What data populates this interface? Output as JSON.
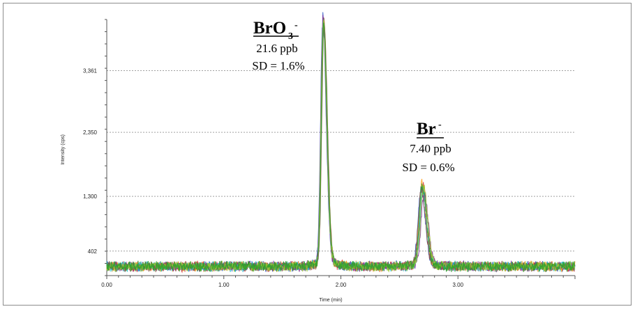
{
  "chart_data": {
    "type": "line",
    "xlabel": "Time (min)",
    "ylabel": "Intensity (cps)",
    "xlim": [
      0.0,
      4.0
    ],
    "ylim": [
      0,
      4200
    ],
    "x_tick_labels": [
      "0.00",
      "1.00",
      "2.00",
      "3.00"
    ],
    "x_ticks": [
      0.0,
      1.0,
      2.0,
      3.0
    ],
    "y_tick_labels": [
      "402",
      "1,300",
      "2,350",
      "3,361"
    ],
    "y_ticks": [
      402,
      1300,
      2350,
      3361
    ],
    "grid": "horizontal dotted",
    "baseline": 150,
    "series_count": 8,
    "series_colors": [
      "#1f4fbf",
      "#d62728",
      "#ff9f1c",
      "#7b2fa1",
      "#17becf",
      "#8c564b",
      "#9acd32",
      "#2ca02c"
    ],
    "peaks": [
      {
        "species": "BrO3-",
        "retention_time": 1.85,
        "height": 3930,
        "label_main": "BrO",
        "label_sub": "3",
        "label_sup": "-",
        "concentration": "21.6 ppb",
        "sd": "SD = 1.6%"
      },
      {
        "species": "Br-",
        "retention_time": 2.7,
        "height": 1290,
        "label_main": "Br",
        "label_sup": "-",
        "concentration": "7.40 ppb",
        "sd": "SD = 0.6%"
      }
    ]
  }
}
